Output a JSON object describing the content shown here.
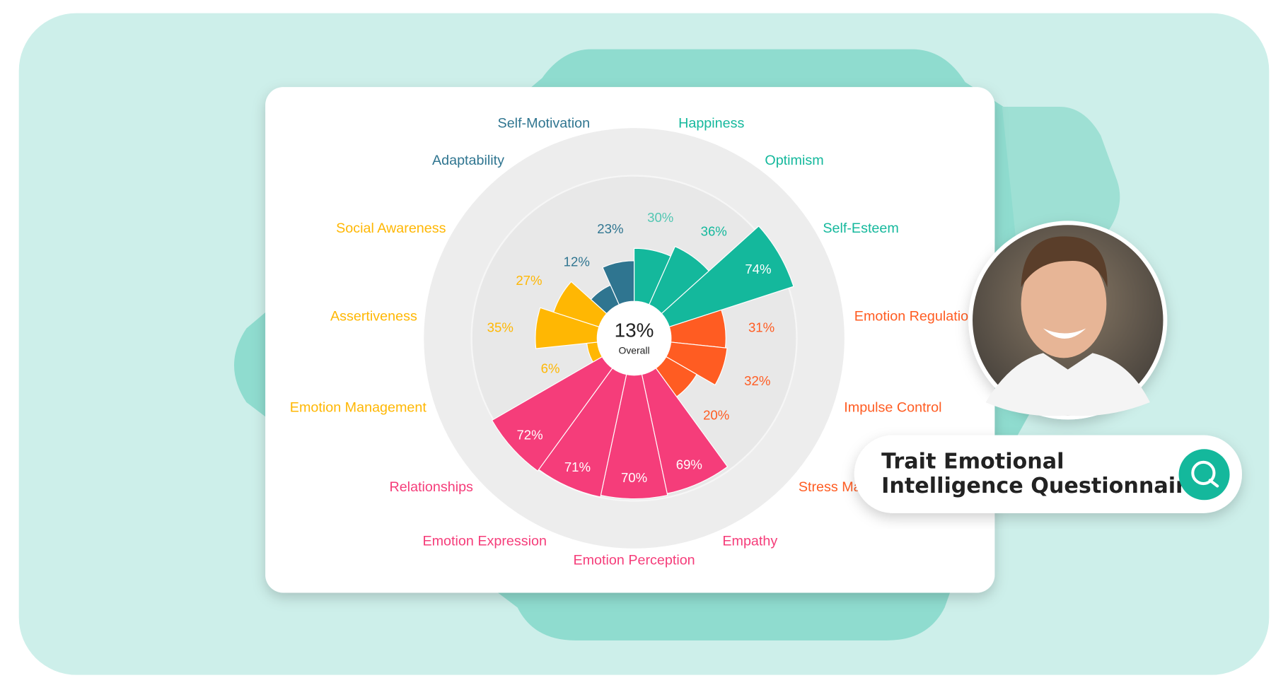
{
  "chart_data": {
    "type": "polar-area",
    "center_text": "13%",
    "center_caption": "Overall",
    "categories": [
      "Happiness",
      "Optimism",
      "Self-Esteem",
      "Emotion Regulation",
      "Impulse Control",
      "Stress Management",
      "Empathy",
      "Emotion Perception",
      "Emotion Expression",
      "Relationships",
      "Emotion Management",
      "Assertiveness",
      "Social Awareness",
      "Adaptability",
      "Self-Motivation"
    ],
    "values": [
      30,
      36,
      74,
      31,
      32,
      20,
      69,
      70,
      71,
      72,
      6,
      35,
      27,
      12,
      23
    ],
    "value_labels": [
      "30%",
      "36%",
      "74%",
      "31%",
      "32%",
      "20%",
      "69%",
      "70%",
      "71%",
      "72%",
      "6%",
      "35%",
      "27%",
      "12%",
      "23%"
    ],
    "colors": [
      "#14b89c",
      "#14b89c",
      "#14b89c",
      "#ff5c22",
      "#ff5c22",
      "#ff5c22",
      "#f53d7a",
      "#f53d7a",
      "#f53d7a",
      "#f53d7a",
      "#ffb703",
      "#ffb703",
      "#ffb703",
      "#2f7590",
      "#2f7590"
    ],
    "ylim": [
      0,
      100
    ]
  },
  "badge": {
    "lines": [
      "Trait Emotional",
      "Intelligence Questionnaire"
    ]
  }
}
